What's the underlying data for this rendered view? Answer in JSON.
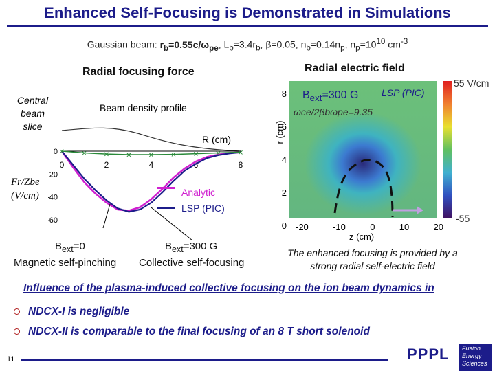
{
  "title": "Enhanced Self-Focusing is Demonstrated in Simulations",
  "params": {
    "prefix": "Gaussian beam: ",
    "rb": "r",
    "rb_sub": "b",
    "rb_val": "=0.55c/ω",
    "rb_val_sub": "pe",
    "Lb": ", L",
    "Lb_sub": "b",
    "Lb_val": "=3.4r",
    "Lb_val_sub": "b",
    "beta": ", β=0.05, n",
    "beta_sub": "b",
    "nb_val": "=0.14n",
    "nb_val_sub": "p",
    "np": ", n",
    "np_sub": "p",
    "np_val": "=10",
    "np_exp": "10",
    "np_unit": " cm",
    "np_unit_exp": "-3"
  },
  "left_panel": {
    "heading": "Radial focusing force",
    "central_slice": [
      "Central",
      "beam",
      "slice"
    ],
    "beam_density": "Beam density profile",
    "r_axis_label": "R (cm)",
    "y_label": [
      "Fr/Zbe",
      "(V/cm)"
    ],
    "legend": {
      "analytic": "Analytic",
      "lsp": "LSP (PIC)"
    },
    "analytic_color": "#d020d0",
    "lsp_color": "#1c1c8a",
    "bext_left": "B",
    "bext_left_sub": "ext",
    "bext_left_val": "=0",
    "cap_left": "Magnetic self-pinching",
    "bext_right": "B",
    "bext_right_sub": "ext",
    "bext_right_val": "=300 G",
    "cap_right": "Collective self-focusing"
  },
  "chart_data": [
    {
      "type": "line",
      "title": "",
      "xlabel": "R (cm)",
      "ylabel": "Fr/Zbe (V/cm)",
      "x_ticks": [
        "0",
        "2",
        "4",
        "6",
        "8"
      ],
      "y_ticks": [
        "0",
        "-20",
        "-40",
        "-60"
      ],
      "xlim": [
        0,
        8
      ],
      "ylim": [
        -62,
        5
      ],
      "series": [
        {
          "name": "Analytic",
          "x": [
            0,
            0.5,
            1,
            1.5,
            2,
            2.5,
            3,
            3.5,
            4,
            4.5,
            5,
            5.5,
            6,
            6.5,
            7,
            7.5,
            8
          ],
          "y": [
            0,
            -14,
            -27,
            -37,
            -45,
            -51,
            -52,
            -49,
            -42,
            -33,
            -23,
            -15,
            -9,
            -5,
            -3,
            -1.5,
            -1
          ]
        },
        {
          "name": "LSP (PIC)",
          "x": [
            0,
            0.5,
            1,
            1.5,
            2,
            2.5,
            3,
            3.5,
            4,
            4.5,
            5,
            5.5,
            6,
            6.5,
            7,
            7.5,
            8
          ],
          "y": [
            0,
            -12,
            -24,
            -34,
            -43,
            -50,
            -53,
            -51,
            -45,
            -36,
            -26,
            -17,
            -11,
            -6,
            -3.5,
            -2,
            -1
          ]
        },
        {
          "name": "Bext=300 G",
          "x": [
            0,
            1,
            2,
            3,
            4,
            5,
            6,
            7,
            8
          ],
          "y": [
            0,
            -1.5,
            -2.5,
            -3,
            -3,
            -2.8,
            -2.2,
            -1.5,
            -0.8
          ]
        }
      ]
    },
    {
      "type": "heatmap",
      "title": "Radial electric field",
      "xlabel": "z (cm)",
      "ylabel": "r (cm)",
      "x_ticks": [
        "-20",
        "-10",
        "0",
        "10",
        "20"
      ],
      "y_ticks": [
        "0",
        "2",
        "4",
        "6",
        "8"
      ],
      "xlim": [
        -20,
        20
      ],
      "ylim": [
        0,
        8
      ],
      "colorbar": {
        "max": "55 V/cm",
        "min": "-55"
      },
      "annotation_field": "Bext=300 G",
      "annotation_ratio": "ωce/2βbωpe=9.35",
      "annotation_lsp": "LSP (PIC)"
    }
  ],
  "right_panel": {
    "heading": "Radial electric field",
    "bext": "B",
    "bext_sub": "ext",
    "bext_val": "=300 G",
    "lsp": "LSP (PIC)",
    "ratio": "ωce/2βbωpe=9.35",
    "cbar_max": "55 V/cm",
    "cbar_min": "-55",
    "r_label": "r (cm)",
    "z_label": "z (cm)",
    "z_ticks": [
      "-20",
      "-10",
      "0",
      "10",
      "20"
    ],
    "r_ticks": [
      "8",
      "6",
      "4",
      "2",
      "0"
    ],
    "note": [
      "The enhanced focusing is provided by a",
      "strong radial self-electric field"
    ]
  },
  "influence": "Influence of the plasma-induced collective focusing on the ion beam dynamics in",
  "bullets": [
    "NDCX-I is negligible",
    "NDCX-II is comparable to the final focusing of an 8 T short solenoid"
  ],
  "page_number": "11",
  "logos": {
    "pppl": "PPPL",
    "fes": [
      "Fusion",
      "Energy",
      "Sciences"
    ]
  }
}
